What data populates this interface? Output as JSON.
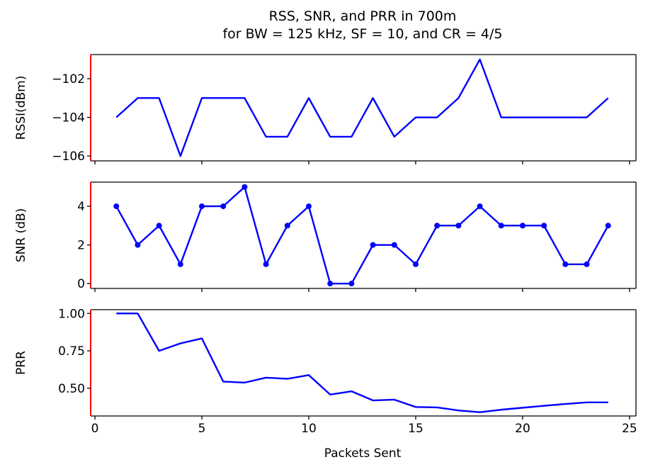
{
  "chart_data": {
    "type": "line",
    "title": [
      "RSS, SNR, and PRR in 700m",
      "for BW = 125 kHz, SF = 10, and CR = 4/5"
    ],
    "xlabel": "Packets Sent",
    "xlim": [
      -0.2,
      25.3
    ],
    "xticks": [
      0,
      5,
      10,
      15,
      20,
      25
    ],
    "x": [
      1,
      2,
      3,
      4,
      5,
      6,
      7,
      8,
      9,
      10,
      11,
      12,
      13,
      14,
      15,
      16,
      17,
      18,
      19,
      20,
      21,
      22,
      23,
      24
    ],
    "colors": {
      "line": "#0000ff",
      "left_spine": "#ff0000",
      "axes": "#000000"
    },
    "subplots": [
      {
        "ylabel": "RSSI(dBm)",
        "ylim": [
          -106.25,
          -100.75
        ],
        "yticks": [
          -102,
          -104,
          -106
        ],
        "ytick_labels": [
          "−102",
          "−104",
          "−106"
        ],
        "markers": false,
        "values": [
          -104,
          -103,
          -103,
          -106,
          -103,
          -103,
          -103,
          -105,
          -105,
          -103,
          -105,
          -105,
          -103,
          -105,
          -104,
          -104,
          -103,
          -101,
          -104,
          -104,
          -104,
          -104,
          -104,
          -103
        ]
      },
      {
        "ylabel": "SNR (dB)",
        "ylim": [
          -0.25,
          5.25
        ],
        "yticks": [
          4,
          2,
          0
        ],
        "ytick_labels": [
          "4",
          "2",
          "0"
        ],
        "markers": true,
        "values": [
          4,
          2,
          3,
          1,
          4,
          4,
          5,
          1,
          3,
          4,
          0,
          0,
          2,
          2,
          1,
          3,
          3,
          4,
          3,
          3,
          3,
          1,
          1,
          3
        ]
      },
      {
        "ylabel": "PRR",
        "ylim": [
          0.315,
          1.025
        ],
        "yticks": [
          1.0,
          0.75,
          0.5
        ],
        "ytick_labels": [
          "1.00",
          "0.75",
          "0.50"
        ],
        "markers": false,
        "values": [
          1.0,
          1.0,
          0.75,
          0.8,
          0.833,
          0.545,
          0.538,
          0.571,
          0.563,
          0.588,
          0.458,
          0.48,
          0.419,
          0.424,
          0.375,
          0.372,
          0.352,
          0.34,
          0.357,
          0.37,
          0.383,
          0.395,
          0.406,
          0.406
        ]
      }
    ]
  }
}
